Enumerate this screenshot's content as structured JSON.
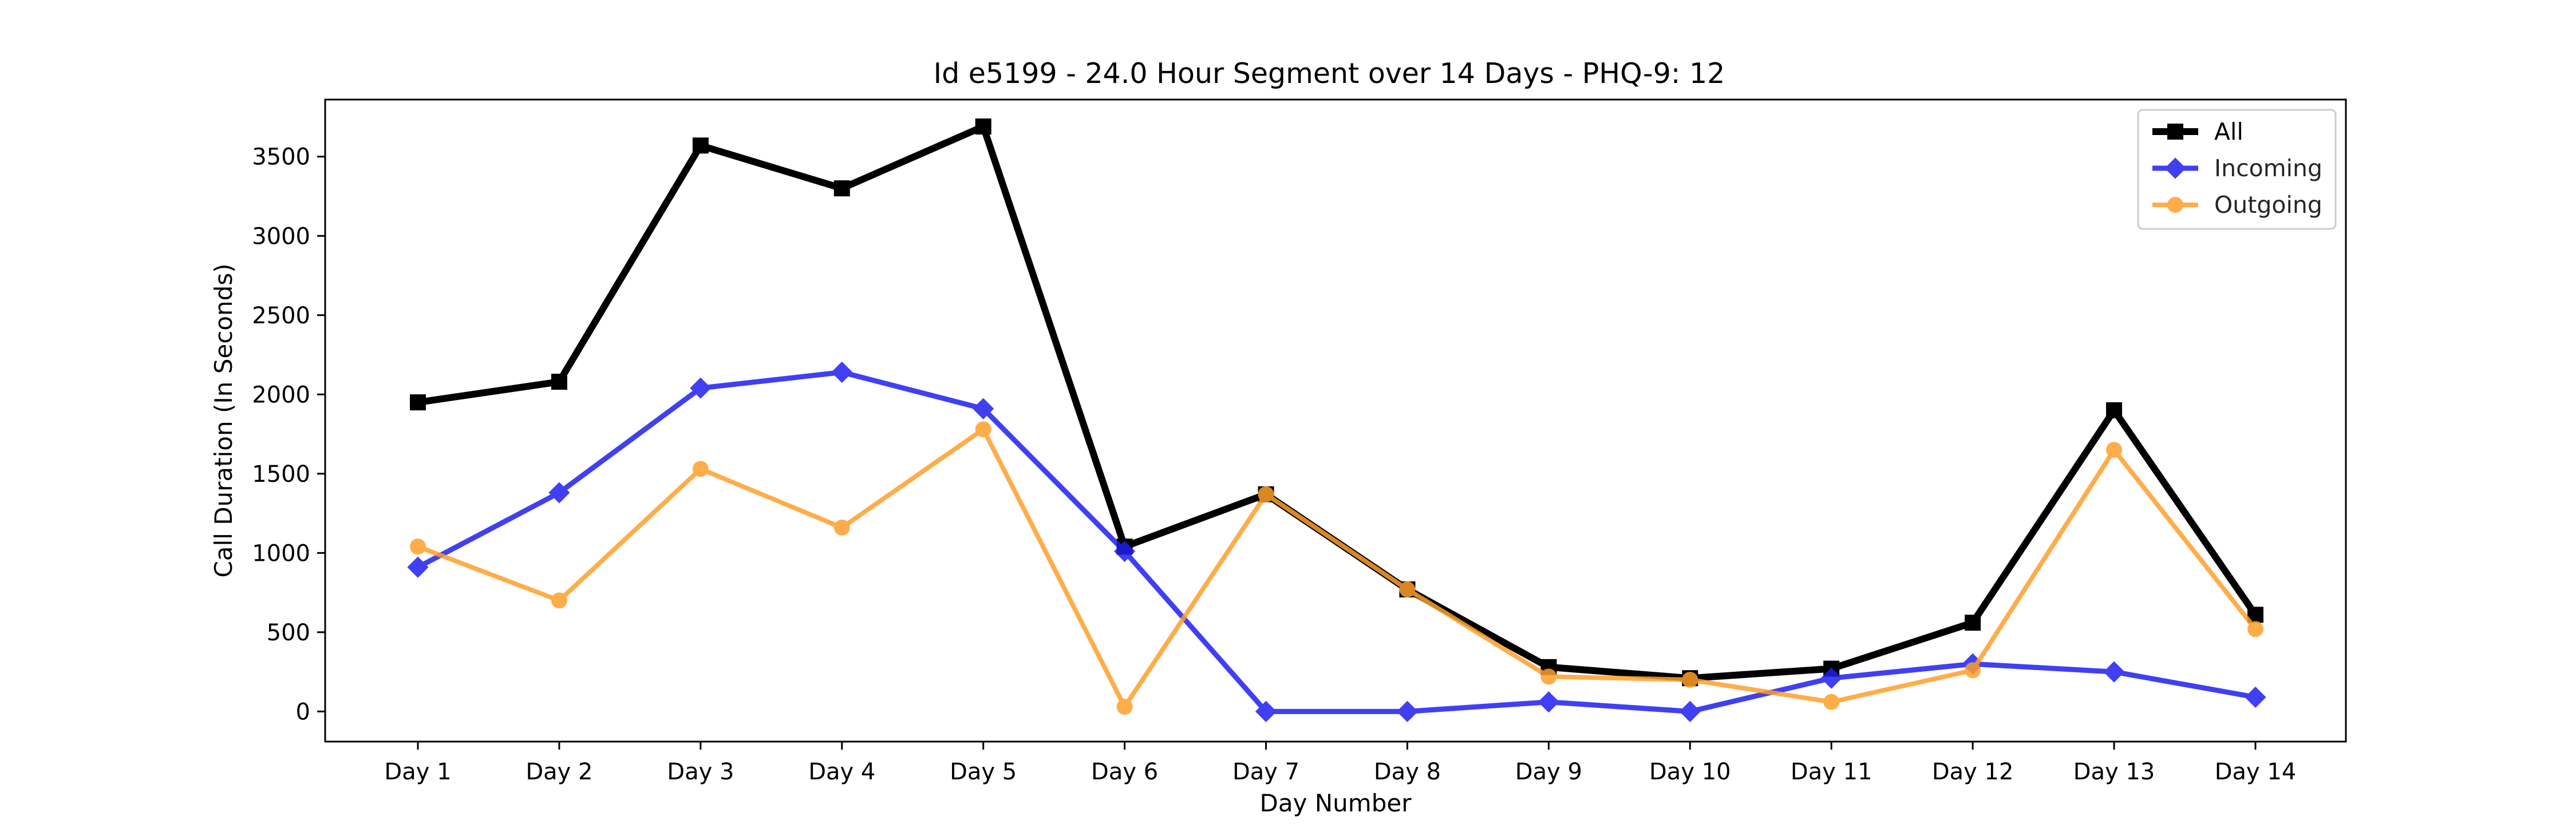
{
  "chart_data": {
    "type": "line",
    "title": "Id e5199 - 24.0 Hour Segment over 14 Days - PHQ-9: 12",
    "xlabel": "Day Number",
    "ylabel": "Call Duration (In Seconds)",
    "categories": [
      "Day 1",
      "Day 2",
      "Day 3",
      "Day 4",
      "Day 5",
      "Day 6",
      "Day 7",
      "Day 8",
      "Day 9",
      "Day 10",
      "Day 11",
      "Day 12",
      "Day 13",
      "Day 14"
    ],
    "yticks": [
      0,
      500,
      1000,
      1500,
      2000,
      2500,
      3000,
      3500
    ],
    "ylim": [
      -190,
      3860
    ],
    "grid": false,
    "legend_position": "top-right",
    "series": [
      {
        "name": "All",
        "color": "#000000",
        "marker": "square",
        "values": [
          1950,
          2080,
          3570,
          3300,
          3690,
          1040,
          1370,
          770,
          280,
          210,
          270,
          560,
          1900,
          610
        ]
      },
      {
        "name": "Incoming",
        "color": "#1f1ff0",
        "marker": "diamond",
        "values": [
          910,
          1380,
          2040,
          2140,
          1910,
          1010,
          0,
          0,
          60,
          0,
          210,
          300,
          250,
          90
        ]
      },
      {
        "name": "Outgoing",
        "color": "#ff9f2a",
        "marker": "circle",
        "values": [
          1040,
          700,
          1530,
          1160,
          1780,
          30,
          1370,
          770,
          220,
          200,
          60,
          260,
          1650,
          520
        ]
      }
    ]
  }
}
